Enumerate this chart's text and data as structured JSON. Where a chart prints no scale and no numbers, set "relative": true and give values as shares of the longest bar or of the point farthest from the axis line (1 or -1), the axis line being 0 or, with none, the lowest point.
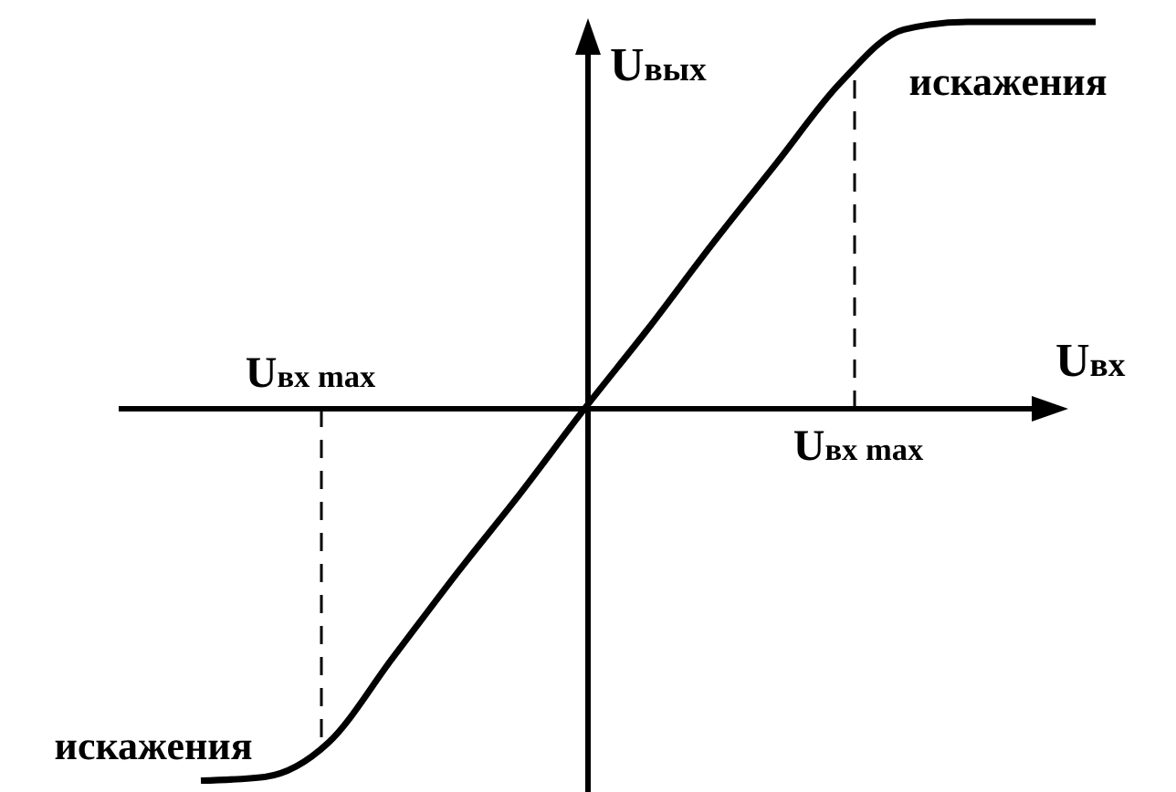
{
  "chart_data": {
    "type": "line",
    "relative": true,
    "xlabel": "U$_{вх}$",
    "ylabel": "U$_{вых}$",
    "categories": [
      null,
      null,
      null,
      null,
      null,
      null,
      null,
      null,
      null,
      null,
      null,
      null,
      null,
      null,
      null
    ],
    "series": [
      {
        "color": "#000000",
        "values": [
          -0.98,
          -0.97,
          -0.88,
          -0.66,
          -0.44,
          -0.23,
          -0.01,
          0.2,
          0.42,
          0.63,
          0.84,
          0.98,
          1.0,
          1.0,
          1.0
        ]
      }
    ],
    "annotations": [
      "U$_{вх max}$",
      "U$_{вх max}$",
      "искажения",
      "искажения"
    ]
  }
}
